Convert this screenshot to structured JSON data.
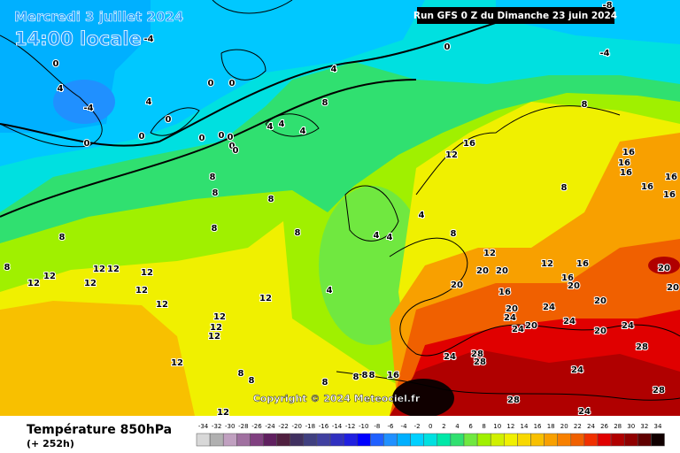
{
  "header": {
    "date": "Mercredi 3 juillet 2024",
    "time": "14:00 locale",
    "run": "Run GFS 0 Z du Dimanche 23 juin 2024"
  },
  "copyright": "Copyright © 2024 Meteociel.fr",
  "footer": {
    "title": "Température 850hPa",
    "lead": "(+ 252h)"
  },
  "map": {
    "contour_labels": [
      "-4",
      "0",
      "4",
      "-4",
      "0",
      "0",
      "0",
      "4",
      "0",
      "0",
      "0",
      "0",
      "0",
      "0",
      "0",
      "4",
      "8",
      "4",
      "4",
      "4",
      "-8",
      "-4",
      "0",
      "8",
      "16",
      "12",
      "16",
      "16",
      "16",
      "16",
      "16",
      "16",
      "8",
      "8",
      "8",
      "8",
      "8",
      "8",
      "8",
      "8",
      "4",
      "4",
      "4",
      "8",
      "12",
      "12",
      "12",
      "12",
      "12",
      "12",
      "12",
      "12",
      "12",
      "12",
      "12",
      "12",
      "12",
      "4",
      "12",
      "20",
      "20",
      "20",
      "16",
      "12",
      "16",
      "16",
      "20",
      "20",
      "20",
      "20",
      "20",
      "24",
      "24",
      "20",
      "24",
      "24",
      "24",
      "20",
      "28",
      "24",
      "28",
      "28",
      "24",
      "28",
      "28",
      "24",
      "12",
      "8",
      "8",
      "8",
      "8",
      "8",
      "8",
      "16"
    ]
  },
  "legend": {
    "values": [
      -34,
      -32,
      -30,
      -28,
      -26,
      -24,
      -22,
      -20,
      -18,
      -16,
      -14,
      -12,
      -10,
      -8,
      -6,
      -4,
      -2,
      0,
      2,
      4,
      6,
      8,
      10,
      12,
      14,
      16,
      18,
      20,
      22,
      24,
      26,
      28,
      30,
      32,
      34
    ],
    "colors": [
      "#d8d8d8",
      "#b0b0b0",
      "#c0a0c0",
      "#a070a0",
      "#804080",
      "#602060",
      "#502040",
      "#403060",
      "#404080",
      "#4040a0",
      "#3030c0",
      "#2020e0",
      "#0000ff",
      "#2060ff",
      "#2090ff",
      "#00b0ff",
      "#00d0ff",
      "#00e0e0",
      "#00e8a8",
      "#30e070",
      "#70e840",
      "#a0f000",
      "#d0f000",
      "#f0f000",
      "#f8d800",
      "#f8c000",
      "#f8a000",
      "#f88000",
      "#f06000",
      "#f03000",
      "#e00000",
      "#b00000",
      "#900000",
      "#600000",
      "#100000"
    ]
  }
}
